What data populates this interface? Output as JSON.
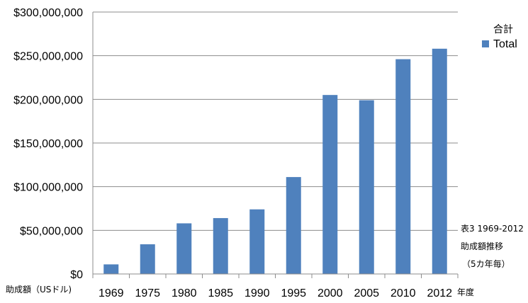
{
  "chart_data": {
    "type": "bar",
    "categories": [
      "1969",
      "1975",
      "1980",
      "1985",
      "1990",
      "1995",
      "2000",
      "2005",
      "2010",
      "2012"
    ],
    "series": [
      {
        "name": "Total",
        "values": [
          11000000,
          34000000,
          58000000,
          64000000,
          74000000,
          111000000,
          205000000,
          199000000,
          246000000,
          258000000
        ]
      }
    ],
    "ylim": [
      0,
      300000000
    ],
    "yticks": [
      "$0",
      "$50,000,000",
      "$100,000,000",
      "$150,000,000",
      "$200,000,000",
      "$250,000,000",
      "$300,000,000"
    ],
    "ylabel": "助成額（USドル)",
    "xlabel": "年度",
    "legend_title": "合計",
    "legend_position": "top-right",
    "grid": true,
    "bar_color": "#4f81bd",
    "note_lines": [
      "表3 1969-2012",
      "助成額推移",
      "（5カ年毎）"
    ]
  }
}
